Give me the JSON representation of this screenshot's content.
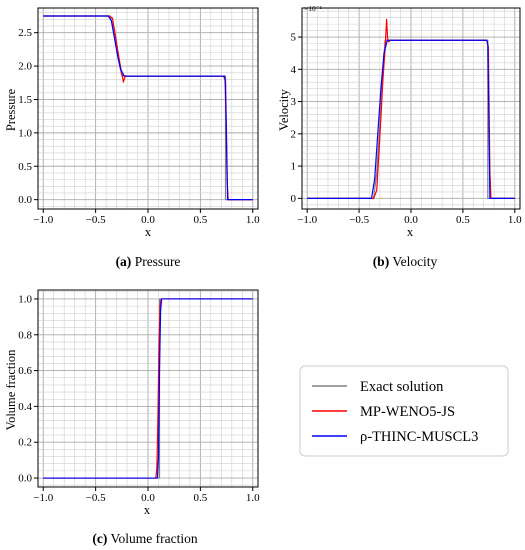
{
  "legend": {
    "entries": [
      {
        "label": "Exact solution",
        "color": "#808080"
      },
      {
        "label": "MP-WENO5-JS",
        "color": "#ff0000"
      },
      {
        "label": "ρ-THINC-MUSCL3",
        "color": "#0000ff"
      }
    ]
  },
  "chart_data": [
    {
      "type": "line",
      "caption": {
        "tag": "(a)",
        "text": " Pressure"
      },
      "xlabel": "x",
      "ylabel": "Pressure",
      "xlim": [
        -1.05,
        1.05
      ],
      "ylim": [
        -0.14,
        2.87
      ],
      "xticks": [
        -1.0,
        -0.5,
        0.0,
        0.5,
        1.0
      ],
      "xtick_labels": [
        "−1.0",
        "−0.5",
        "0.0",
        "0.5",
        "1.0"
      ],
      "yticks": [
        0.0,
        0.5,
        1.0,
        1.5,
        2.0,
        2.5
      ],
      "ytick_labels": [
        "0.0",
        "0.5",
        "1.0",
        "1.5",
        "2.0",
        "2.5"
      ],
      "grid": true,
      "exponent_label": "",
      "series": [
        {
          "name": "Exact solution",
          "color": "#808080",
          "x": [
            -1.0,
            -0.36,
            -0.33,
            -0.3,
            -0.27,
            -0.25,
            -0.22,
            0.74,
            0.74,
            1.0
          ],
          "y": [
            2.75,
            2.75,
            2.55,
            2.25,
            2.0,
            1.85,
            1.85,
            1.85,
            0.0,
            0.0
          ]
        },
        {
          "name": "MP-WENO5-JS",
          "color": "#ff0000",
          "x": [
            -1.0,
            -0.37,
            -0.34,
            -0.31,
            -0.28,
            -0.26,
            -0.245,
            -0.235,
            -0.22,
            -0.2,
            0.0,
            0.72,
            0.735,
            0.745,
            0.755,
            0.765,
            1.0
          ],
          "y": [
            2.75,
            2.75,
            2.72,
            2.45,
            2.15,
            1.97,
            1.86,
            1.76,
            1.84,
            1.85,
            1.85,
            1.85,
            1.8,
            1.2,
            0.3,
            0.0,
            0.0
          ]
        },
        {
          "name": "ρ-THINC-MUSCL3",
          "color": "#0000ff",
          "x": [
            -1.0,
            -0.38,
            -0.35,
            -0.32,
            -0.29,
            -0.26,
            -0.23,
            -0.21,
            0.0,
            0.73,
            0.74,
            0.75,
            0.76,
            1.0
          ],
          "y": [
            2.75,
            2.75,
            2.68,
            2.42,
            2.15,
            1.95,
            1.86,
            1.85,
            1.85,
            1.85,
            1.75,
            0.9,
            0.0,
            0.0
          ]
        }
      ]
    },
    {
      "type": "line",
      "caption": {
        "tag": "(b)",
        "text": " Velocity"
      },
      "xlabel": "x",
      "ylabel": "Velocity",
      "xlim": [
        -1.05,
        1.05
      ],
      "ylim": [
        -0.33,
        5.9
      ],
      "xticks": [
        -1.0,
        -0.5,
        0.0,
        0.5,
        1.0
      ],
      "xtick_labels": [
        "−1.0",
        "−0.5",
        "0.0",
        "0.5",
        "1.0"
      ],
      "yticks": [
        0,
        1,
        2,
        3,
        4,
        5
      ],
      "ytick_labels": [
        "0",
        "1",
        "2",
        "3",
        "4",
        "5"
      ],
      "grid": true,
      "exponent_label": "×10⁻¹",
      "series": [
        {
          "name": "Exact solution",
          "color": "#808080",
          "x": [
            -1.0,
            -0.36,
            -0.33,
            -0.3,
            -0.27,
            -0.25,
            -0.22,
            0.74,
            0.74,
            1.0
          ],
          "y": [
            0.0,
            0.0,
            0.8,
            2.3,
            3.9,
            4.9,
            4.9,
            4.9,
            0.0,
            0.0
          ]
        },
        {
          "name": "MP-WENO5-JS",
          "color": "#ff0000",
          "x": [
            -1.0,
            -0.36,
            -0.33,
            -0.3,
            -0.27,
            -0.25,
            -0.235,
            -0.225,
            -0.215,
            -0.2,
            0.0,
            0.73,
            0.745,
            0.76,
            0.77,
            1.0
          ],
          "y": [
            0.0,
            0.0,
            0.25,
            1.9,
            3.7,
            4.6,
            5.55,
            4.95,
            4.85,
            4.9,
            4.9,
            4.9,
            4.7,
            0.8,
            0.0,
            0.0
          ]
        },
        {
          "name": "ρ-THINC-MUSCL3",
          "color": "#0000ff",
          "x": [
            -1.0,
            -0.38,
            -0.35,
            -0.32,
            -0.29,
            -0.26,
            -0.23,
            -0.21,
            0.0,
            0.73,
            0.74,
            0.75,
            0.76,
            1.0
          ],
          "y": [
            0.0,
            0.0,
            0.6,
            2.0,
            3.4,
            4.5,
            4.88,
            4.9,
            4.9,
            4.9,
            4.75,
            2.5,
            0.0,
            0.0
          ]
        }
      ]
    },
    {
      "type": "line",
      "caption": {
        "tag": "(c)",
        "text": " Volume fraction"
      },
      "xlabel": "x",
      "ylabel": "Volume fraction",
      "xlim": [
        -1.05,
        1.05
      ],
      "ylim": [
        -0.05,
        1.05
      ],
      "xticks": [
        -1.0,
        -0.5,
        0.0,
        0.5,
        1.0
      ],
      "xtick_labels": [
        "−1.0",
        "−0.5",
        "0.0",
        "0.5",
        "1.0"
      ],
      "yticks": [
        0.0,
        0.2,
        0.4,
        0.6,
        0.8,
        1.0
      ],
      "ytick_labels": [
        "0.0",
        "0.2",
        "0.4",
        "0.6",
        "0.8",
        "1.0"
      ],
      "grid": true,
      "exponent_label": "",
      "series": [
        {
          "name": "Exact solution",
          "color": "#808080",
          "x": [
            -1.0,
            0.11,
            0.11,
            1.0
          ],
          "y": [
            0.0,
            0.0,
            1.0,
            1.0
          ]
        },
        {
          "name": "MP-WENO5-JS",
          "color": "#ff0000",
          "x": [
            -1.0,
            0.075,
            0.085,
            0.095,
            0.105,
            0.115,
            0.125,
            1.0
          ],
          "y": [
            0.0,
            0.0,
            0.06,
            0.35,
            0.75,
            0.96,
            1.0,
            1.0
          ]
        },
        {
          "name": "ρ-THINC-MUSCL3",
          "color": "#0000ff",
          "x": [
            -1.0,
            0.09,
            0.1,
            0.11,
            0.12,
            0.13,
            1.0
          ],
          "y": [
            0.0,
            0.0,
            0.12,
            0.6,
            0.93,
            1.0,
            1.0
          ]
        }
      ]
    }
  ]
}
